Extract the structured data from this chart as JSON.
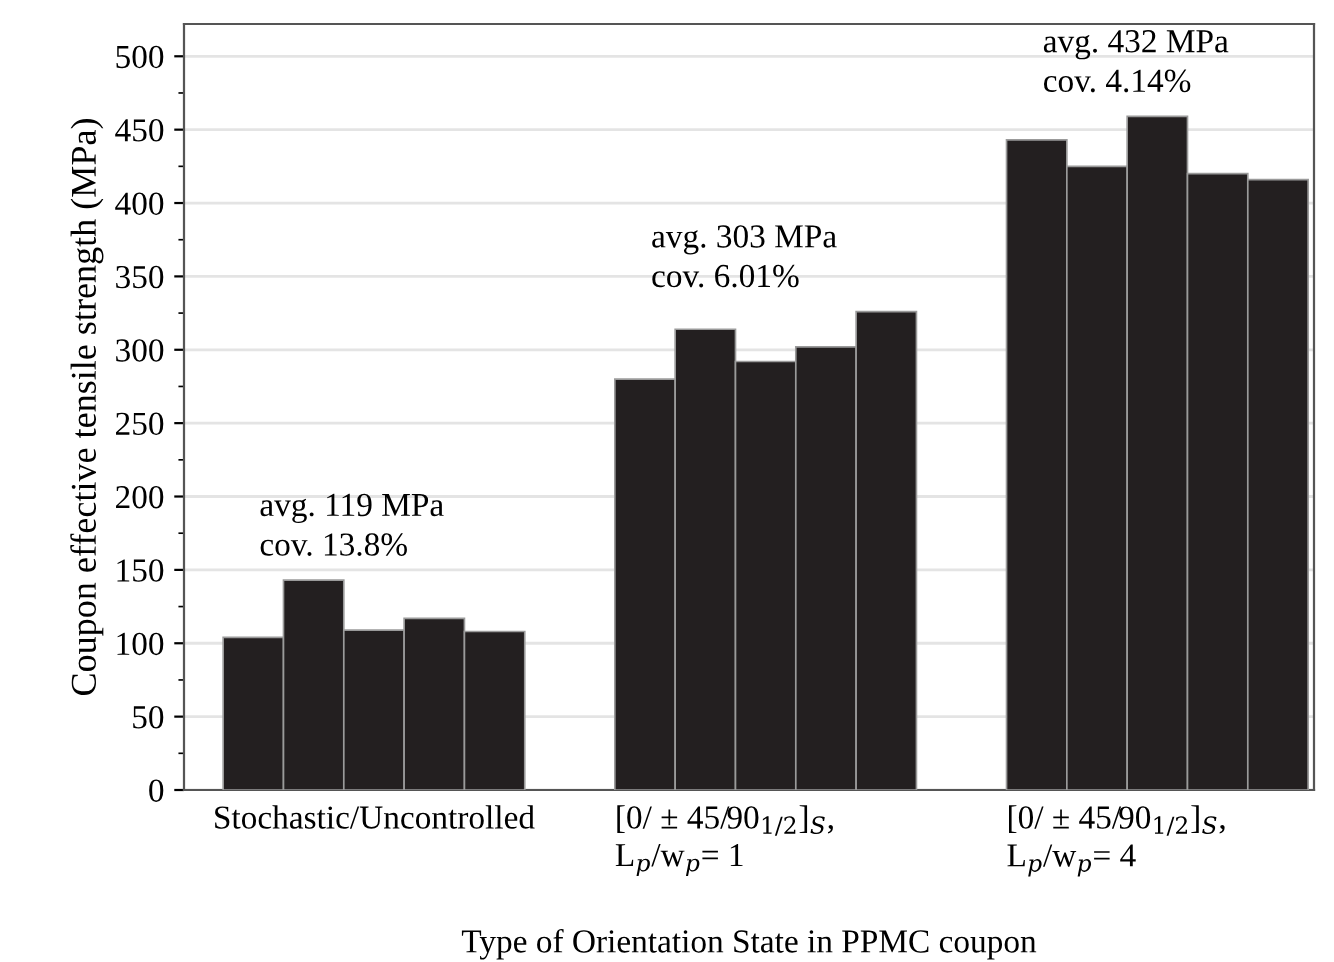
{
  "chart_data": {
    "type": "bar",
    "xlabel": "Type of Orientation State in PPMC coupon",
    "ylabel": "Coupon effective tensile strength (MPa)",
    "categories": [
      "Stochastic/Uncontrolled",
      "[0/ ± 45/90$_{1/2}$]$_{S}$,\nL$_{p}$/w$_{p}$= 1",
      "[0/ ± 45/90$_{1/2}$]$_{S}$,\nL$_{p}$/w$_{p}$= 4"
    ],
    "series": [
      {
        "color": "#231f20",
        "values": [
          104,
          280,
          443
        ]
      },
      {
        "color": "#231f20",
        "values": [
          143,
          314,
          425
        ]
      },
      {
        "color": "#231f20",
        "values": [
          109,
          292,
          459
        ]
      },
      {
        "color": "#231f20",
        "values": [
          117,
          302,
          420
        ]
      },
      {
        "color": "#231f20",
        "values": [
          108,
          326,
          416
        ]
      }
    ],
    "ylim": [
      0,
      522
    ],
    "yticks": [
      0,
      50,
      100,
      150,
      200,
      250,
      300,
      350,
      400,
      450,
      500
    ],
    "grid": "y",
    "annotations": [
      "avg. 119 MPa\ncov. 13.8%",
      "avg. 303 MPa\ncov. 6.01%",
      "avg. 432 MPa\ncov. 4.14%"
    ]
  }
}
